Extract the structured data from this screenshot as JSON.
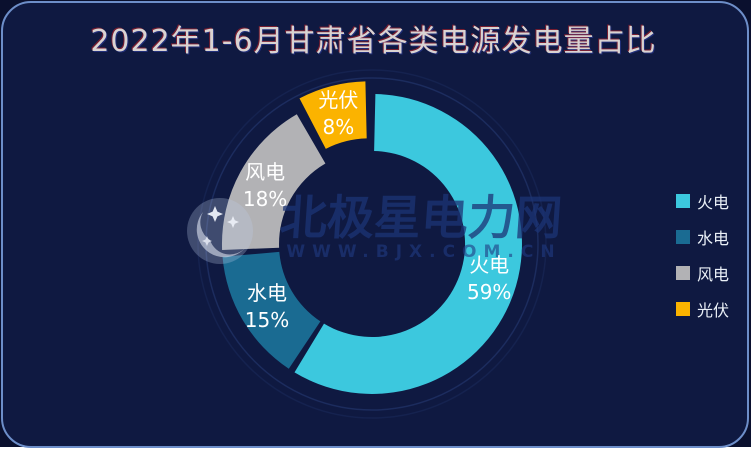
{
  "page": {
    "title": "2022年1-6月甘肃省各类电源发电量占比"
  },
  "chart_data": {
    "type": "pie",
    "subtype": "donut",
    "title": "2022年1-6月甘肃省各类电源发电量占比",
    "unit": "%",
    "legend_position": "right",
    "slices": [
      {
        "key": "thermal-power",
        "label": "火电",
        "value": 59,
        "color": "#3cc8de",
        "selected": false
      },
      {
        "key": "hydro-power",
        "label": "水电",
        "value": 15,
        "color": "#1a6b92",
        "selected": false
      },
      {
        "key": "wind-power",
        "label": "风电",
        "value": 18,
        "color": "#b2b2b5",
        "selected": false
      },
      {
        "key": "solar-power",
        "label": "光伏",
        "value": 8,
        "color": "#fbb300",
        "selected": true
      }
    ]
  },
  "watermark": {
    "brand": "北极星电力网",
    "url": "WWW.BJX.COM.CN"
  }
}
